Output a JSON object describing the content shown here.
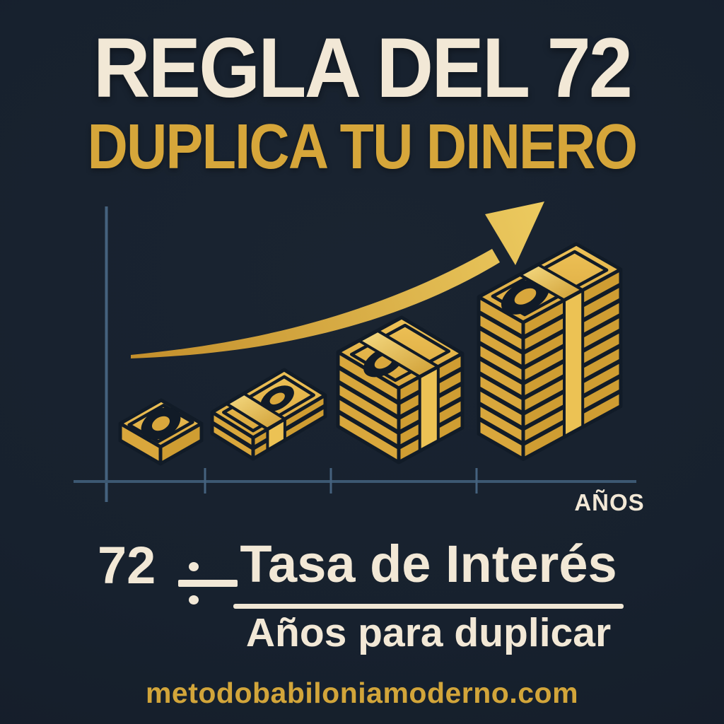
{
  "meta": {
    "language": "es",
    "kind": "finance-infographic"
  },
  "colors": {
    "background": "#17212e",
    "outline_navy": "#111b27",
    "cream": "#f2e8d6",
    "gold": "#d9a73c",
    "gold_top_light": "#eec258",
    "gold_band_light": "#f6dc85",
    "gold_deep": "#cf9d32",
    "gold_dark": "#c28d2a",
    "axis_vertical": "#45627e",
    "axis_horizontal": "#3c5872"
  },
  "header": {
    "title": "REGLA DEL 72",
    "subtitle": "DUPLICA TU DINERO"
  },
  "chart": {
    "axis_label": "AÑOS",
    "illustration": "isometric-money-stacks-exponential-growth",
    "arrow": "exponential-growth-arrow",
    "stacks": [
      {
        "name": "stack-1",
        "bills": 1,
        "band": false
      },
      {
        "name": "stack-2",
        "bills": 2,
        "band": true
      },
      {
        "name": "stack-3",
        "bills": 5,
        "band": true
      },
      {
        "name": "stack-4",
        "bills": 9,
        "band": true
      }
    ]
  },
  "formula": {
    "dividend": "72",
    "operator": "÷",
    "divisor": "Tasa de Interés",
    "result": "Años para duplicar"
  },
  "footer": {
    "website": "metodobabiloniamoderno.com"
  }
}
